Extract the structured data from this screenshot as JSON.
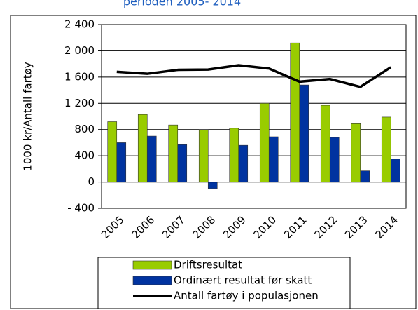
{
  "chart_data": {
    "type": "bar",
    "title": "perioden 2005- 2014",
    "y_label": "1000 kr/Antall fartøy",
    "categories": [
      "2005",
      "2006",
      "2007",
      "2008",
      "2009",
      "2010",
      "2011",
      "2012",
      "2013",
      "2014"
    ],
    "series": [
      {
        "name": "Driftsresultat",
        "color": "#99cc00",
        "type": "bar",
        "values": [
          920,
          1030,
          870,
          800,
          820,
          1200,
          2120,
          1170,
          890,
          990
        ]
      },
      {
        "name": "Ordinært resultat før skatt",
        "color": "#0033a0",
        "type": "bar",
        "values": [
          600,
          700,
          570,
          -100,
          560,
          690,
          1480,
          680,
          170,
          350
        ]
      },
      {
        "name": "Antall fartøy i populasjonen",
        "color": "#000000",
        "type": "line",
        "values": [
          1680,
          1650,
          1710,
          1715,
          1780,
          1730,
          1530,
          1570,
          1450,
          1750
        ]
      }
    ],
    "ylim": [
      -400,
      2400
    ],
    "yticks": [
      {
        "value": -400,
        "label": "- 400"
      },
      0,
      400,
      800,
      {
        "value": 1200,
        "label": "1 200"
      },
      {
        "value": 1600,
        "label": "1 600"
      },
      {
        "value": 2000,
        "label": "2 000"
      },
      {
        "value": 2400,
        "label": "2 400"
      }
    ],
    "grid": true
  }
}
